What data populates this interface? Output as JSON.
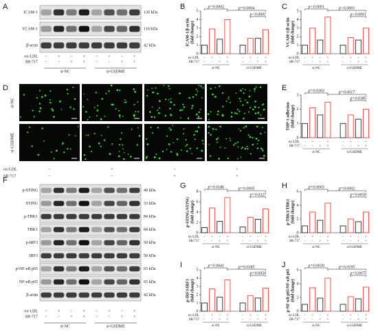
{
  "panel_labels": [
    "A",
    "B",
    "C",
    "D",
    "E",
    "F",
    "G",
    "H",
    "I",
    "J"
  ],
  "conditions": {
    "rows": [
      {
        "label": "ox-LDL",
        "signs": [
          "−",
          "+",
          "−",
          "+",
          "−",
          "+",
          "−",
          "+"
        ]
      },
      {
        "label": "SR-717",
        "signs": [
          "−",
          "−",
          "+",
          "+",
          "−",
          "−",
          "+",
          "+"
        ]
      }
    ],
    "groups": [
      "si-NC",
      "si-GSDME"
    ]
  },
  "blots": [
    {
      "rows": [
        {
          "label": "ICAM-1",
          "size": "130 kDa"
        },
        {
          "label": "VCAM-1",
          "size": "110 kDa"
        },
        {
          "label": "β-actin",
          "size": "42 kDa"
        }
      ]
    },
    {
      "rows": [
        {
          "label": "p-STING",
          "size": "40 kDa"
        },
        {
          "label": "STING",
          "size": "33 kDa"
        },
        {
          "label": "p-TBK1",
          "size": "84 kDa"
        },
        {
          "label": "TBK1",
          "size": "84 kDa"
        },
        {
          "label": "p-IRF3",
          "size": "50 kDa"
        },
        {
          "label": "IRF3",
          "size": "50 kDa"
        },
        {
          "label": "p-NF-κB p65",
          "size": "65 kDa"
        },
        {
          "label": "NF-κB p65",
          "size": "65 kDa"
        },
        {
          "label": "β-actin",
          "size": "42 kDa"
        }
      ]
    }
  ],
  "micrograph": {
    "row_labels": [
      "si-NC",
      "si-GSDME"
    ],
    "conditions": [
      {
        "label": "ox-LDL",
        "signs": [
          "−",
          "+",
          "−",
          "+"
        ]
      },
      {
        "label": "SR-717",
        "signs": [
          "−",
          "−",
          "+",
          "+"
        ]
      }
    ]
  },
  "chart_data": [
    {
      "type": "bar",
      "y_label": [
        "ICAM-1/β-actin",
        "(fold change)"
      ],
      "values": [
        1.0,
        2.9,
        1.7,
        4.0,
        1.0,
        1.8,
        1.8,
        2.8
      ],
      "colors": [
        "#222",
        "#e8413a",
        "#222",
        "#e8413a",
        "#222",
        "#e8413a",
        "#222",
        "#e8413a"
      ],
      "ylim": [
        0,
        5
      ],
      "yticks": [
        0,
        1,
        2,
        3,
        4,
        5
      ],
      "annotations": [
        "p=0.0002",
        "p=0.0004",
        "p<0.0001"
      ]
    },
    {
      "type": "bar",
      "y_label": [
        "VCAM-1/β-actin",
        "(fold change)"
      ],
      "values": [
        1.0,
        3.0,
        1.6,
        4.3,
        1.0,
        1.9,
        1.6,
        3.0
      ],
      "colors": [
        "#222",
        "#e8413a",
        "#222",
        "#e8413a",
        "#222",
        "#e8413a",
        "#222",
        "#e8413a"
      ],
      "ylim": [
        0,
        5
      ],
      "yticks": [
        0,
        1,
        2,
        3,
        4,
        5
      ],
      "annotations": [
        "p<0.0001",
        "p<0.0001",
        "p<0.0001"
      ]
    },
    {
      "type": "bar",
      "y_label": [
        "THP-1 adhesion",
        "(fold change)"
      ],
      "values": [
        1.0,
        2.1,
        1.6,
        2.5,
        1.0,
        1.6,
        1.3,
        2.0
      ],
      "colors": [
        "#222",
        "#e8413a",
        "#222",
        "#e8413a",
        "#222",
        "#e8413a",
        "#222",
        "#e8413a"
      ],
      "ylim": [
        0,
        3
      ],
      "yticks": [
        0,
        1,
        2,
        3
      ],
      "annotations": [
        "p=0.0303",
        "p=0.0017",
        "p=0.0385"
      ]
    },
    {
      "type": "bar",
      "y_label": [
        "p-STING/STING",
        "(fold change)"
      ],
      "values": [
        1.0,
        4.8,
        2.2,
        6.8,
        1.1,
        3.0,
        2.6,
        4.6
      ],
      "colors": [
        "#222",
        "#e8413a",
        "#222",
        "#e8413a",
        "#222",
        "#e8413a",
        "#222",
        "#e8413a"
      ],
      "ylim": [
        0,
        8
      ],
      "yticks": [
        0,
        2,
        4,
        6,
        8
      ],
      "annotations": [
        "p=0.0186",
        "p=0.0005",
        "p=0.0327"
      ]
    },
    {
      "type": "bar",
      "y_label": [
        "p-TBK1/TBK1",
        "(fold change)"
      ],
      "values": [
        1.0,
        3.0,
        1.8,
        4.3,
        1.0,
        2.0,
        1.6,
        3.0
      ],
      "colors": [
        "#222",
        "#e8413a",
        "#222",
        "#e8413a",
        "#222",
        "#e8413a",
        "#222",
        "#e8413a"
      ],
      "ylim": [
        0,
        6
      ],
      "yticks": [
        0,
        2,
        4,
        6
      ],
      "annotations": [
        "p=0.0003",
        "p=0.0002",
        "p=0.0050"
      ]
    },
    {
      "type": "bar",
      "y_label": [
        "p-IRF3/IRF3",
        "(fold change)"
      ],
      "values": [
        1.0,
        2.7,
        1.7,
        3.8,
        1.0,
        1.9,
        1.6,
        2.8
      ],
      "colors": [
        "#222",
        "#e8413a",
        "#222",
        "#e8413a",
        "#222",
        "#e8413a",
        "#222",
        "#e8413a"
      ],
      "ylim": [
        0,
        5
      ],
      "yticks": [
        0,
        1,
        2,
        3,
        4,
        5
      ],
      "annotations": [
        "p=0.0041",
        "p=0.0185",
        "p=0.0050"
      ]
    },
    {
      "type": "bar",
      "y_label": [
        "p-NF-κB p65/NF-κB p65",
        "(fold change)"
      ],
      "values": [
        1.0,
        3.4,
        1.9,
        4.8,
        1.0,
        2.1,
        1.8,
        3.5
      ],
      "colors": [
        "#222",
        "#e8413a",
        "#222",
        "#e8413a",
        "#222",
        "#e8413a",
        "#222",
        "#e8413a"
      ],
      "ylim": [
        0,
        6
      ],
      "yticks": [
        0,
        2,
        4,
        6
      ],
      "annotations": [
        "p=0.0030",
        "p=0.0195",
        "p=0.0075"
      ]
    }
  ]
}
